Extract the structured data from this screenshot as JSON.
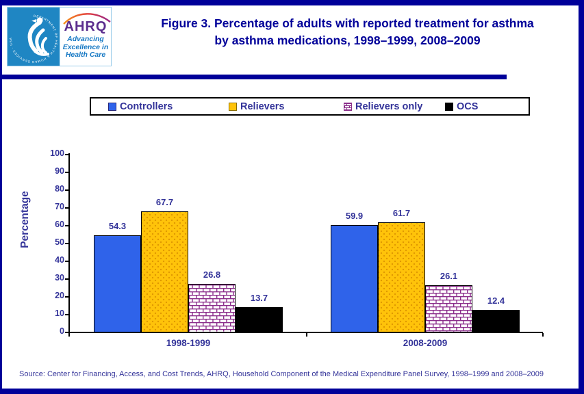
{
  "header": {
    "title_line1": "Figure 3. Percentage of adults with reported treatment for asthma",
    "title_line2": "by asthma medications, 1998–1999, 2008–2009",
    "logo": {
      "hhs_ring_text": "DEPARTMENT OF HEALTH & HUMAN SERVICES · USA",
      "ahrq_acronym": "AHRQ",
      "tagline_line1": "Advancing",
      "tagline_line2": "Excellence in",
      "tagline_line3": "Health Care"
    }
  },
  "legend": {
    "items": [
      {
        "label": "Controllers"
      },
      {
        "label": "Relievers"
      },
      {
        "label": "Relievers only"
      },
      {
        "label": "OCS"
      }
    ]
  },
  "chart_data": {
    "type": "bar",
    "title": "Figure 3. Percentage of adults with reported treatment for asthma by asthma medications, 1998–1999, 2008–2009",
    "categories": [
      "1998-1999",
      "2008-2009"
    ],
    "series": [
      {
        "name": "Controllers",
        "values": [
          54.3,
          59.9
        ],
        "color": "#2F63EA",
        "pattern": "solid"
      },
      {
        "name": "Relievers",
        "values": [
          67.7,
          61.7
        ],
        "color": "#FFC30A",
        "pattern": "dots",
        "pattern_color": "#DD9500"
      },
      {
        "name": "Relievers only",
        "values": [
          26.8,
          26.1
        ],
        "color": "#FFFFFF",
        "pattern": "brick",
        "pattern_color": "#8B2E8B"
      },
      {
        "name": "OCS",
        "values": [
          13.7,
          12.4
        ],
        "color": "#000000",
        "pattern": "solid"
      }
    ],
    "ylabel": "Percentage",
    "xlabel": "",
    "ylim": [
      0,
      100
    ],
    "ytick_step": 10,
    "grid": false,
    "legend_position": "top"
  },
  "source_note": "Source: Center for Financing, Access, and Cost Trends, AHRQ, Household Component of the Medical Expenditure Panel Survey, 1998–1999 and 2008–2009",
  "colors": {
    "frame_navy": "#000099",
    "chart_text_navy": "#333399",
    "hhs_blue": "#1F86C3",
    "ahrq_purple": "#5B2D8E",
    "tagline_blue": "#1779C4"
  }
}
